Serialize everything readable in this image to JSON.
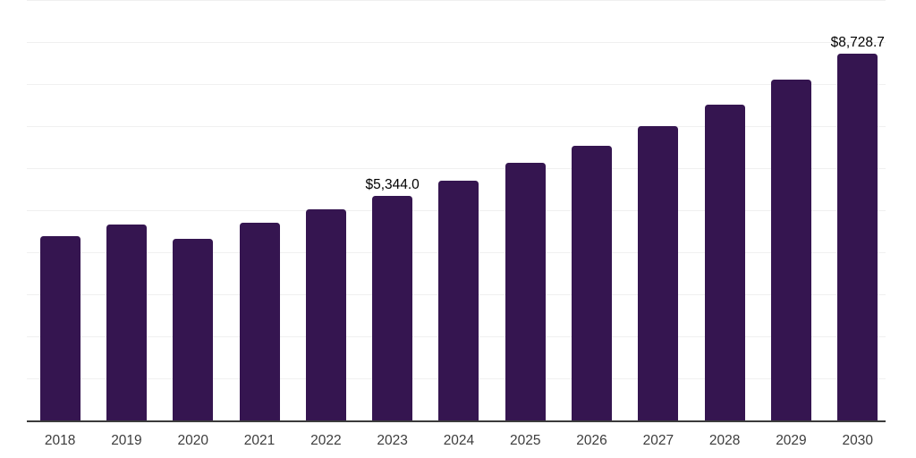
{
  "chart_data": {
    "type": "bar",
    "title": "",
    "xlabel": "",
    "ylabel": "",
    "categories": [
      "2018",
      "2019",
      "2020",
      "2021",
      "2022",
      "2023",
      "2024",
      "2025",
      "2026",
      "2027",
      "2028",
      "2029",
      "2030"
    ],
    "values": [
      4380,
      4670,
      4310,
      4710,
      5030,
      5344.0,
      5710,
      6120,
      6540,
      7010,
      7520,
      8100,
      8728.7
    ],
    "value_labels": [
      "",
      "",
      "",
      "",
      "",
      "$5,344.0",
      "",
      "",
      "",
      "",
      "",
      "",
      "$8,728.7"
    ],
    "ylim": [
      0,
      10000
    ],
    "gridline_interval": 1000,
    "grid": "on",
    "legend": "none",
    "colors": {
      "bar": "#351550",
      "axis_line": "#3b3b3b",
      "gridline": "#f0f0f0",
      "value_label": "#000000",
      "tick_label": "#3d3d3d",
      "background": "#ffffff"
    }
  }
}
